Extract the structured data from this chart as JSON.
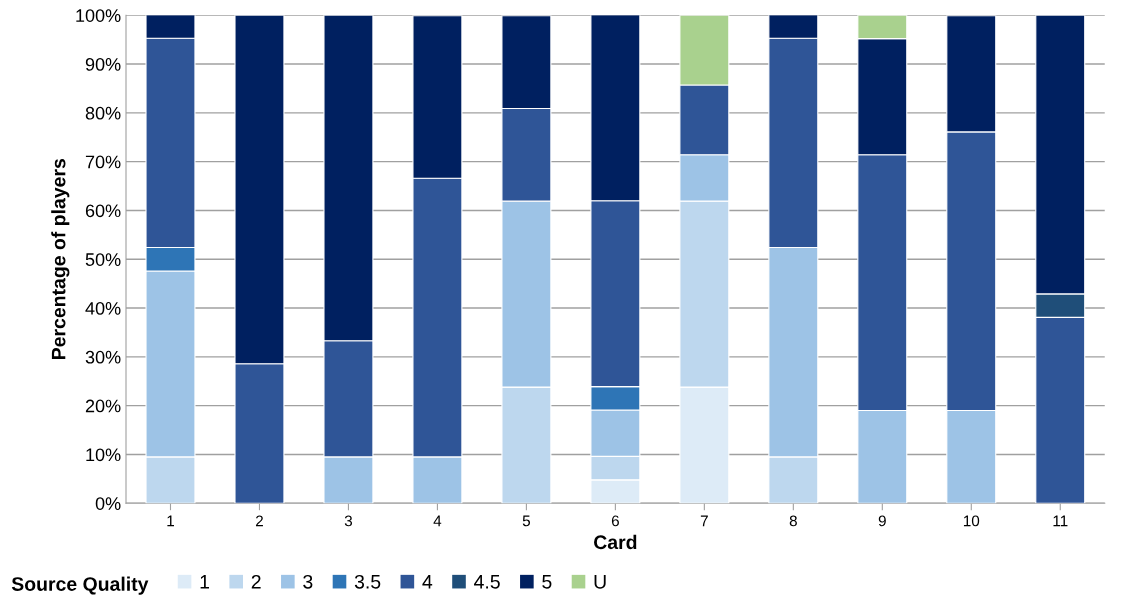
{
  "chart_data": {
    "type": "bar",
    "stacked": true,
    "xlabel": "Card",
    "ylabel": "Percentage of players",
    "legend_title": "Source Quality",
    "categories": [
      "1",
      "2",
      "3",
      "4",
      "5",
      "6",
      "7",
      "8",
      "9",
      "10",
      "11"
    ],
    "series": [
      {
        "name": "1",
        "color": "#ddebf7",
        "values": [
          0,
          0,
          0,
          0,
          0,
          4.8,
          23.8,
          0,
          0,
          0,
          0
        ]
      },
      {
        "name": "2",
        "color": "#bdd7ee",
        "values": [
          9.5,
          0,
          0,
          0,
          23.8,
          4.8,
          38.1,
          9.5,
          0,
          0,
          0
        ]
      },
      {
        "name": "3",
        "color": "#9dc3e6",
        "values": [
          38.1,
          0,
          9.5,
          9.5,
          38.1,
          9.5,
          9.5,
          42.9,
          19.0,
          19.0,
          0
        ]
      },
      {
        "name": "3.5",
        "color": "#2e75b6",
        "values": [
          4.8,
          0,
          0,
          0,
          0,
          4.8,
          0,
          0,
          0,
          0,
          0
        ]
      },
      {
        "name": "4",
        "color": "#2f5597",
        "values": [
          42.9,
          28.6,
          23.8,
          57.1,
          19.0,
          38.1,
          14.3,
          42.9,
          52.4,
          57.1,
          38.1
        ]
      },
      {
        "name": "4.5",
        "color": "#1f4e79",
        "values": [
          0,
          0,
          0,
          0,
          0,
          0,
          0,
          0,
          0,
          0,
          4.8
        ]
      },
      {
        "name": "5",
        "color": "#002060",
        "values": [
          4.8,
          71.4,
          66.7,
          33.3,
          19.0,
          38.1,
          0,
          4.8,
          23.8,
          23.8,
          57.1
        ]
      },
      {
        "name": "U",
        "color": "#a9d18e",
        "values": [
          0,
          0,
          0,
          0,
          0,
          0,
          14.3,
          0,
          4.8,
          0,
          0
        ]
      }
    ],
    "ylim": [
      0,
      100
    ],
    "yticks": [
      {
        "value": 0,
        "label": "0%"
      },
      {
        "value": 10,
        "label": "10%"
      },
      {
        "value": 20,
        "label": "20%"
      },
      {
        "value": 30,
        "label": "30%"
      },
      {
        "value": 40,
        "label": "40%"
      },
      {
        "value": 50,
        "label": "50%"
      },
      {
        "value": 60,
        "label": "60%"
      },
      {
        "value": 70,
        "label": "70%"
      },
      {
        "value": 80,
        "label": "80%"
      },
      {
        "value": 90,
        "label": "90%"
      },
      {
        "value": 100,
        "label": "100%"
      }
    ],
    "grid": "y",
    "legend": "bottom left"
  }
}
